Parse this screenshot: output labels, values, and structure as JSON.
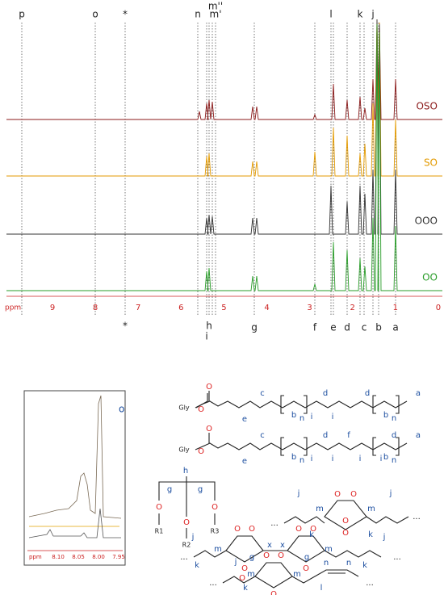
{
  "spectrum": {
    "peak_labels_top": [
      "p",
      "o",
      "*",
      "n",
      "m''",
      "m'",
      "l",
      "k",
      "j"
    ],
    "peak_labels_bottom": [
      "*",
      "h",
      "i",
      "g",
      "f",
      "e",
      "d",
      "c",
      "b",
      "a"
    ],
    "axis": {
      "unit": "ppm",
      "ticks": [
        "9",
        "8",
        "7",
        "6",
        "5",
        "4",
        "3",
        "2",
        "1",
        "0"
      ]
    },
    "traces": [
      "OSO",
      "SO",
      "OOO",
      "OO"
    ]
  },
  "inset": {
    "label": "o",
    "unit": "ppm",
    "ticks": [
      "8.10",
      "8.05",
      "8.00",
      "7.95"
    ]
  },
  "structures": [
    {
      "labels": [
        "Gly",
        "O",
        "O",
        "c",
        "d",
        "d",
        "a",
        "e",
        "b",
        "n",
        "i",
        "i",
        "b",
        "n"
      ]
    },
    {
      "labels": [
        "Gly",
        "O",
        "O",
        "c",
        "d",
        "f",
        "d",
        "a",
        "e",
        "b",
        "n",
        "i",
        "i",
        "i",
        "i",
        "b",
        "n"
      ]
    },
    {
      "labels": [
        "h",
        "g",
        "g",
        "O",
        "O",
        "O",
        "R1",
        "R2",
        "R3"
      ]
    },
    {
      "labels": [
        "...",
        "j",
        "m",
        "O",
        "O",
        "O",
        "O",
        "m",
        "j",
        "k",
        "k",
        "..."
      ]
    },
    {
      "labels": [
        "...",
        "j",
        "m",
        "O",
        "O",
        "O",
        "x",
        "x",
        "O",
        "O",
        "O",
        "m",
        "j",
        "k",
        "g",
        "g",
        "k",
        "..."
      ]
    },
    {
      "labels": [
        "...",
        "j",
        "m",
        "O",
        "O",
        "O",
        "O",
        "m",
        "n",
        "n",
        "k",
        "l",
        "..."
      ]
    }
  ]
}
